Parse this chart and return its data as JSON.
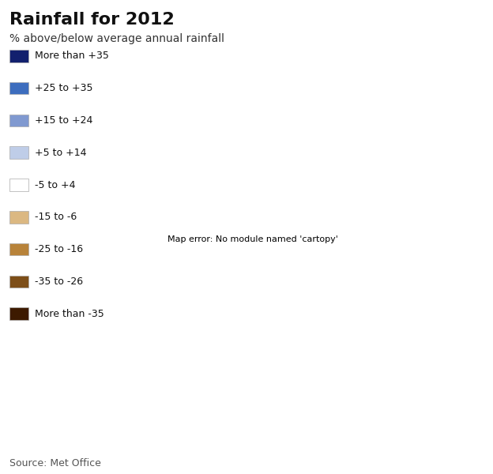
{
  "title": "Rainfall for 2012",
  "subtitle": "% above/below average annual rainfall",
  "source": "Source: Met Office",
  "legend_labels": [
    "More than +35",
    "+25 to +35",
    "+15 to +24",
    "+5 to +14",
    "-5 to +4",
    "-15 to -6",
    "-25 to -16",
    "-35 to -26",
    "More than -35"
  ],
  "legend_colors": [
    "#12206e",
    "#3d6dbe",
    "#8099d0",
    "#bfcde8",
    "#ffffff",
    "#dbb882",
    "#b8833a",
    "#7d4e18",
    "#3d1a00"
  ],
  "background_color": "#ffffff",
  "map_outline_color": "#777777",
  "inset_box_color": "#555555",
  "title_fontsize": 16,
  "subtitle_fontsize": 10,
  "source_fontsize": 9,
  "figwidth": 6.24,
  "figheight": 6.0,
  "dpi": 100
}
